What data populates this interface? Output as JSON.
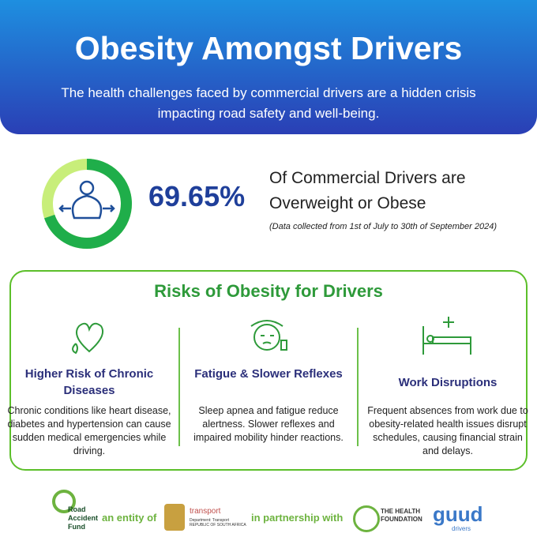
{
  "header": {
    "title": "Obesity Amongst Drivers",
    "subtitle": "The health challenges faced by commercial drivers are a hidden crisis impacting road safety and well-being."
  },
  "stat": {
    "value": 69.65,
    "label": "69.65%",
    "text_line1": "Of Commercial Drivers are",
    "text_line2": "Overweight or Obese",
    "note": "(Data collected from 1st of July to 30th of September 2024)"
  },
  "risks": {
    "title": "Risks of Obesity for Drivers",
    "items": [
      {
        "heading": "Higher Risk of Chronic Diseases",
        "body": "Chronic conditions like heart disease, diabetes and hypertension can cause sudden medical emergencies while driving."
      },
      {
        "heading": "Fatigue & Slower Reflexes",
        "body": "Sleep apnea and fatigue reduce alertness. Slower reflexes and impaired mobility hinder reactions."
      },
      {
        "heading": "Work Disruptions",
        "body": "Frequent absences from work due to obesity-related health issues disrupt schedules, causing financial strain and delays."
      }
    ]
  },
  "footer": {
    "raf": "Road Accident Fund",
    "entity": "an entity of",
    "transport": "transport",
    "transport_sub": "Department: Transport REPUBLIC OF SOUTH AFRICA",
    "partnership": "in partnership with",
    "health": "THE HEALTH FOUNDATION",
    "guud": "guud",
    "guud_sub": "drivers"
  }
}
